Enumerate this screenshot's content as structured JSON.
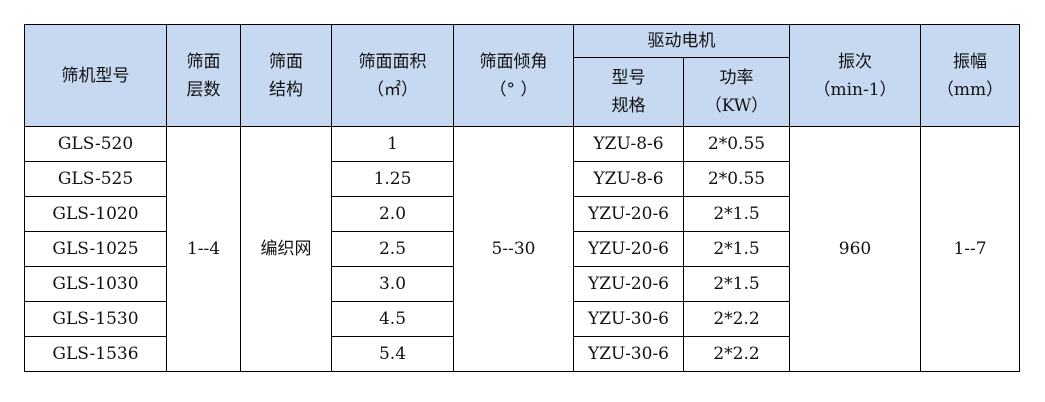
{
  "headers": {
    "model": "筛机型号",
    "layers": [
      "筛面",
      "层数"
    ],
    "structure": [
      "筛面",
      "结构"
    ],
    "area": [
      "筛面面积",
      "（㎡）"
    ],
    "angle": [
      "筛面倾角",
      "（° ）"
    ],
    "motor": "驱动电机",
    "motor_model": [
      "型号",
      "规格"
    ],
    "power": [
      "功率",
      "（KW）"
    ],
    "freq": [
      "振次",
      "（min-1）"
    ],
    "amp": [
      "振幅",
      "（mm）"
    ]
  },
  "shared": {
    "layers": "1--4",
    "structure": "编织网",
    "angle": "5--30",
    "freq": "960",
    "amp": "1--7"
  },
  "rows": [
    {
      "model": "GLS-520",
      "area": "1",
      "motor": "YZU-8-6",
      "power": "2*0.55"
    },
    {
      "model": "GLS-525",
      "area": "1.25",
      "motor": "YZU-8-6",
      "power": "2*0.55"
    },
    {
      "model": "GLS-1020",
      "area": "2.0",
      "motor": "YZU-20-6",
      "power": "2*1.5"
    },
    {
      "model": "GLS-1025",
      "area": "2.5",
      "motor": "YZU-20-6",
      "power": "2*1.5"
    },
    {
      "model": "GLS-1030",
      "area": "3.0",
      "motor": "YZU-20-6",
      "power": "2*1.5"
    },
    {
      "model": "GLS-1530",
      "area": "4.5",
      "motor": "YZU-30-6",
      "power": "2*2.2"
    },
    {
      "model": "GLS-1536",
      "area": "5.4",
      "motor": "YZU-30-6",
      "power": "2*2.2"
    }
  ]
}
